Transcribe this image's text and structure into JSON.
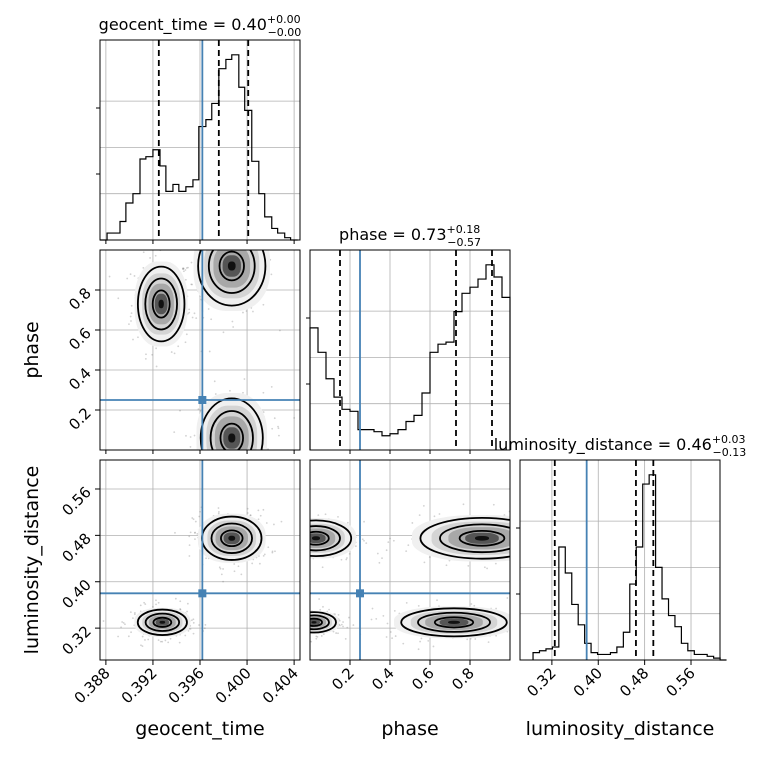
{
  "chart_data": {
    "type": "corner",
    "parameters": [
      {
        "key": "geocent_time",
        "label": "geocent_time",
        "title_main": "geocent_time = 0.40",
        "title_sup": "+0.00",
        "title_sub": "−0.00",
        "range": [
          0.3875,
          0.4045
        ],
        "ticks": [
          0.388,
          0.392,
          0.396,
          0.4,
          0.404
        ],
        "tick_labels": [
          "0.388",
          "0.392",
          "0.396",
          "0.400",
          "0.404"
        ],
        "truth": 0.3962,
        "quantiles": [
          0.3925,
          0.3976,
          0.4001
        ]
      },
      {
        "key": "phase",
        "label": "phase",
        "title_main": "phase = 0.73",
        "title_sup": "+0.18",
        "title_sub": "−0.57",
        "range": [
          0.0,
          1.0
        ],
        "ticks": [
          0.2,
          0.4,
          0.6,
          0.8
        ],
        "tick_labels": [
          "0.2",
          "0.4",
          "0.6",
          "0.8"
        ],
        "truth": 0.25,
        "quantiles": [
          0.15,
          0.73,
          0.91
        ]
      },
      {
        "key": "luminosity_distance",
        "label": "luminosity_distance",
        "title_main": "luminosity_distance = 0.46",
        "title_sup": "+0.03",
        "title_sub": "−0.13",
        "range": [
          0.265,
          0.61
        ],
        "ticks": [
          0.32,
          0.4,
          0.48,
          0.56
        ],
        "tick_labels": [
          "0.32",
          "0.40",
          "0.48",
          "0.56"
        ],
        "truth": 0.38,
        "quantiles": [
          0.325,
          0.465,
          0.495
        ]
      }
    ],
    "histograms": [
      {
        "param": "geocent_time",
        "edges": [
          0.3875,
          0.3881,
          0.3886,
          0.3892,
          0.3897,
          0.3903,
          0.3909,
          0.3914,
          0.392,
          0.3926,
          0.3931,
          0.3937,
          0.3942,
          0.3948,
          0.3954,
          0.3959,
          0.3965,
          0.397,
          0.3976,
          0.3982,
          0.3987,
          0.3993,
          0.3998,
          0.4004,
          0.401,
          0.4015,
          0.4021,
          0.4026,
          0.4032,
          0.4037,
          0.4043
        ],
        "counts": [
          0.0,
          0.03,
          0.03,
          0.08,
          0.16,
          0.2,
          0.35,
          0.36,
          0.39,
          0.32,
          0.21,
          0.24,
          0.21,
          0.23,
          0.26,
          0.49,
          0.52,
          0.59,
          0.74,
          0.78,
          0.8,
          0.66,
          0.56,
          0.34,
          0.2,
          0.1,
          0.05,
          0.03,
          0.01,
          0.0
        ]
      },
      {
        "param": "phase",
        "edges": [
          0.0,
          0.04,
          0.08,
          0.12,
          0.16,
          0.2,
          0.24,
          0.28,
          0.32,
          0.36,
          0.4,
          0.44,
          0.48,
          0.52,
          0.56,
          0.6,
          0.64,
          0.68,
          0.72,
          0.76,
          0.8,
          0.84,
          0.88,
          0.92,
          0.96,
          1.0
        ],
        "counts": [
          0.6,
          0.48,
          0.35,
          0.26,
          0.2,
          0.19,
          0.1,
          0.1,
          0.09,
          0.07,
          0.08,
          0.1,
          0.14,
          0.17,
          0.28,
          0.48,
          0.52,
          0.53,
          0.68,
          0.77,
          0.8,
          0.84,
          0.91,
          0.85,
          0.75
        ]
      },
      {
        "param": "luminosity_distance",
        "edges": [
          0.2875,
          0.2986,
          0.3098,
          0.3209,
          0.332,
          0.3431,
          0.3543,
          0.3654,
          0.3765,
          0.3876,
          0.3988,
          0.4099,
          0.421,
          0.4321,
          0.4433,
          0.4544,
          0.4655,
          0.4767,
          0.4878,
          0.4989,
          0.51,
          0.5212,
          0.5323,
          0.5434,
          0.5545,
          0.5657,
          0.5768,
          0.5879,
          0.599,
          0.6102,
          0.6213
        ],
        "counts": [
          0.04,
          0.05,
          0.06,
          0.07,
          0.61,
          0.47,
          0.3,
          0.19,
          0.09,
          0.04,
          0.03,
          0.03,
          0.04,
          0.07,
          0.15,
          0.41,
          0.61,
          0.95,
          1.0,
          0.5,
          0.33,
          0.24,
          0.18,
          0.09,
          0.05,
          0.03,
          0.03,
          0.02,
          0.01,
          0.0
        ]
      }
    ],
    "contours": [
      {
        "x_param": "geocent_time",
        "y_param": "phase",
        "modes": [
          {
            "cx": 0.3927,
            "cy": 0.73,
            "sx": 0.0009,
            "sy": 0.085
          },
          {
            "cx": 0.3987,
            "cy": 0.92,
            "sx": 0.0013,
            "sy": 0.09
          },
          {
            "cx": 0.3987,
            "cy": 0.06,
            "sx": 0.0012,
            "sy": 0.09
          }
        ]
      },
      {
        "x_param": "geocent_time",
        "y_param": "luminosity_distance",
        "modes": [
          {
            "cx": 0.3987,
            "cy": 0.475,
            "sx": 0.00115,
            "sy": 0.017
          },
          {
            "cx": 0.3928,
            "cy": 0.33,
            "sx": 0.00095,
            "sy": 0.01
          }
        ]
      },
      {
        "x_param": "phase",
        "y_param": "luminosity_distance",
        "modes": [
          {
            "cx": 0.86,
            "cy": 0.475,
            "sx": 0.14,
            "sy": 0.016
          },
          {
            "cx": 0.03,
            "cy": 0.475,
            "sx": 0.08,
            "sy": 0.014
          },
          {
            "cx": 0.72,
            "cy": 0.33,
            "sx": 0.12,
            "sy": 0.011
          },
          {
            "cx": 0.02,
            "cy": 0.33,
            "sx": 0.05,
            "sy": 0.008
          }
        ]
      }
    ],
    "grid": true,
    "truth_color": "#4682b4",
    "quantile_style": "dashed black"
  }
}
